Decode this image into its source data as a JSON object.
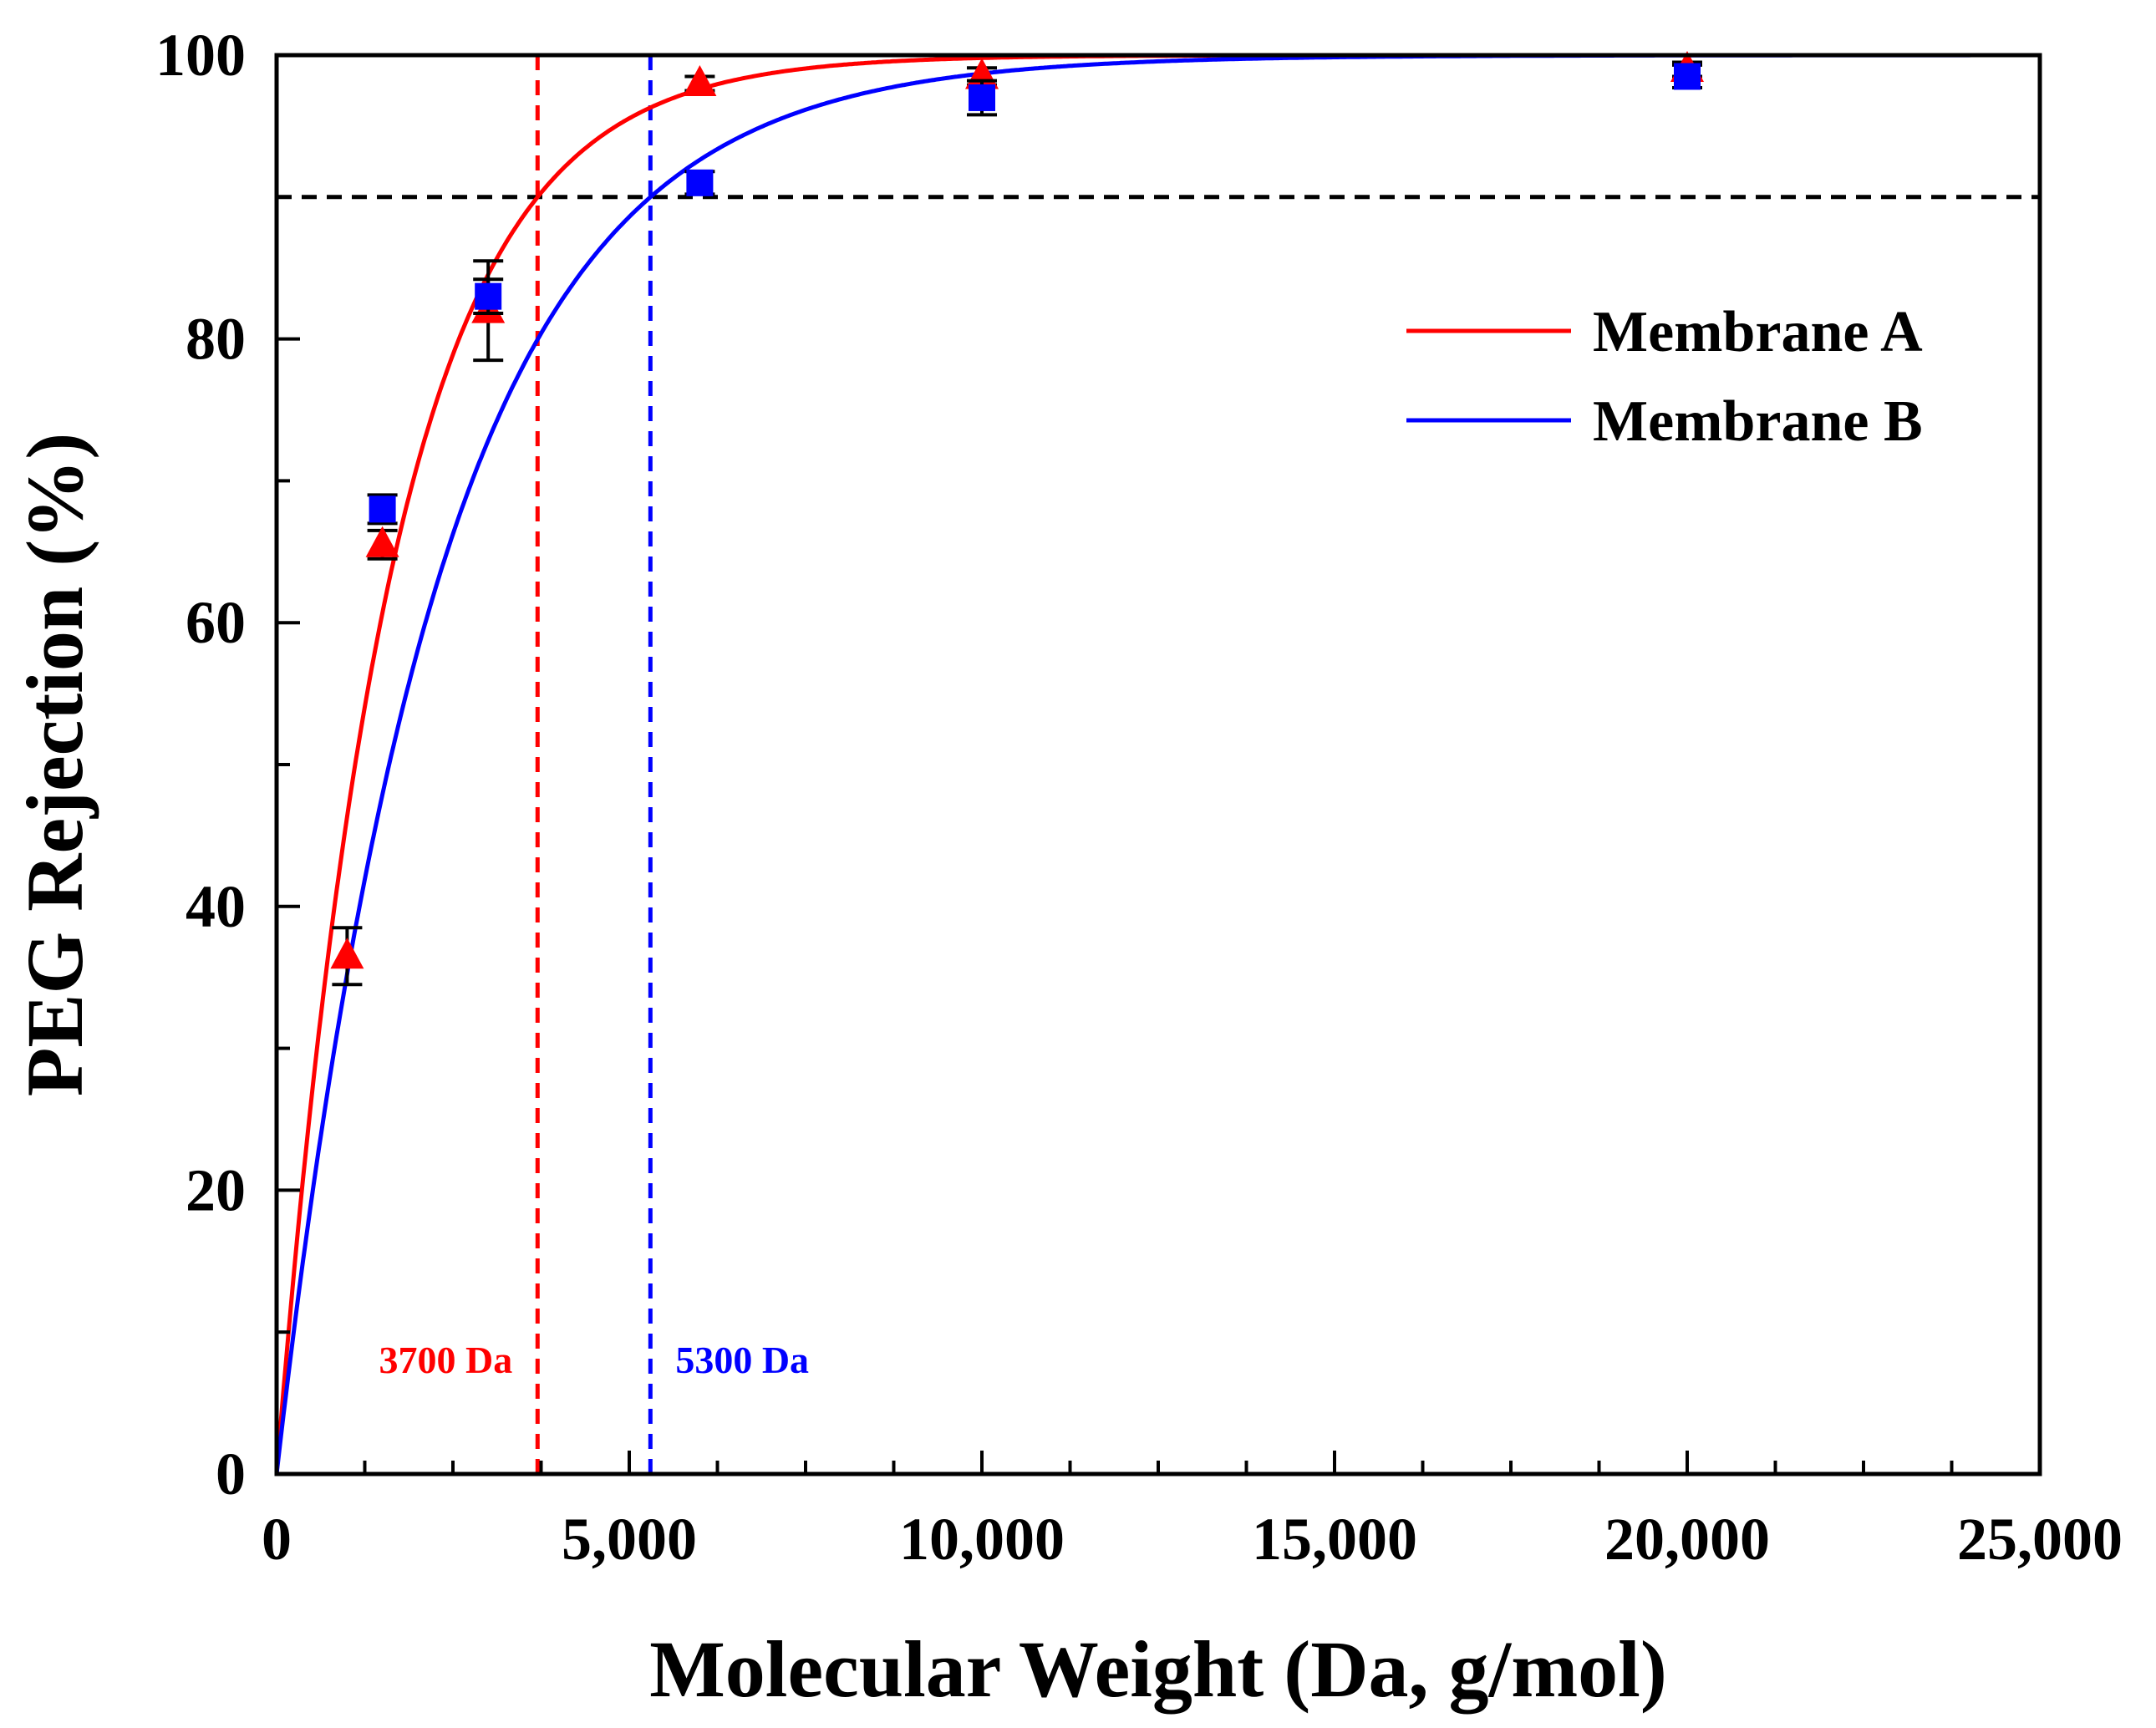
{
  "chart_data": {
    "type": "scatter",
    "title": "",
    "xlabel": "Molecular Weight (Da, g/mol)",
    "ylabel": "PEG Rejection (%)",
    "xlim": [
      0,
      25000
    ],
    "ylim": [
      0,
      100
    ],
    "x_ticks": [
      0,
      5000,
      10000,
      15000,
      20000,
      25000
    ],
    "x_tick_labels": [
      "0",
      "5,000",
      "10,000",
      "15,000",
      "20,000",
      "25,000"
    ],
    "y_ticks": [
      0,
      20,
      40,
      60,
      80,
      100
    ],
    "y_tick_labels": [
      "0",
      "20",
      "40",
      "60",
      "80",
      "100"
    ],
    "grid": false,
    "legend_position": "top-right",
    "series": [
      {
        "name": "Membrane A",
        "color": "#ff0000",
        "marker": "triangle",
        "x": [
          1000,
          1500,
          3000,
          6000,
          10000,
          20000
        ],
        "y": [
          36.5,
          65.5,
          82.0,
          98.0,
          98.5,
          99.0
        ],
        "error": [
          2.0,
          1.0,
          3.5,
          0.5,
          0.6,
          0.5
        ],
        "fit": {
          "model": "1 - exp(-x / tau)",
          "tau": 1607
        }
      },
      {
        "name": "Membrane B",
        "color": "#0000ff",
        "marker": "square",
        "x": [
          1500,
          3000,
          6000,
          10000,
          20000
        ],
        "y": [
          68.0,
          83.0,
          91.0,
          97.0,
          98.5
        ],
        "error": [
          1.0,
          1.2,
          0.8,
          1.2,
          0.8
        ],
        "fit": {
          "model": "1 - exp(-x / tau)",
          "tau": 2302
        }
      }
    ],
    "reference_line_y": 90,
    "reference_line_color": "#000000",
    "cutoffs": [
      {
        "x": 3700,
        "label": "3700 Da",
        "color": "#ff0000"
      },
      {
        "x": 5300,
        "label": "5300 Da",
        "color": "#0000ff"
      }
    ]
  }
}
